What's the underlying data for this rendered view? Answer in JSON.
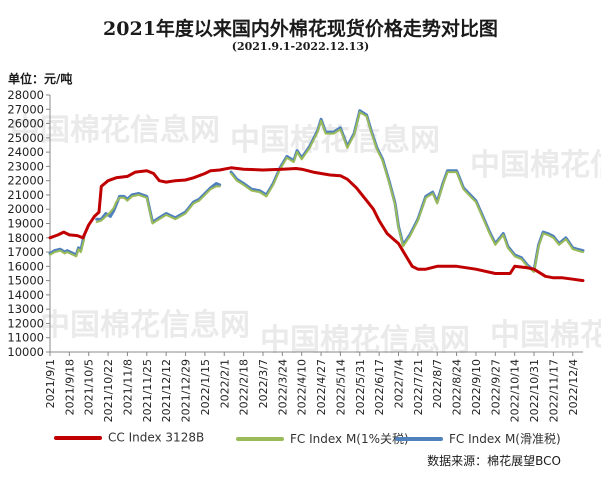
{
  "title": "2021年度以来国内外棉花现货价格走势对比图",
  "subtitle": "(2021.9.1-2022.12.13)",
  "unit_label": "单位：元/吨",
  "source_label": "数据来源：棉花展望BCO",
  "watermark": {
    "cn": "中国棉花信息网",
    "url": "www.cottonchina.org.cn"
  },
  "colors": {
    "cc_index": "#c00000",
    "fc_1pct": "#9bbb59",
    "fc_sliding": "#4f81bd"
  },
  "legend": [
    {
      "name": "CC Index 3128B",
      "color": "#c00000"
    },
    {
      "name": "FC Index M(1%关税)",
      "color": "#9bbb59"
    },
    {
      "name": "FC Index M(滑准税)",
      "color": "#4f81bd"
    }
  ],
  "chart_data": {
    "type": "line",
    "title": "2021年度以来国内外棉花现货价格走势对比图",
    "subtitle": "(2021.9.1-2022.12.13)",
    "ylabel": "单位：元/吨",
    "ylim": [
      10000,
      28000
    ],
    "yticks": [
      10000,
      11000,
      12000,
      13000,
      14000,
      15000,
      16000,
      17000,
      18000,
      19000,
      20000,
      21000,
      22000,
      23000,
      24000,
      25000,
      26000,
      27000,
      28000
    ],
    "xlim": [
      "2021-09-01",
      "2022-12-13"
    ],
    "xticks": [
      "2021/9/1",
      "2021/9/18",
      "2021/10/5",
      "2021/10/22",
      "2021/11/8",
      "2021/11/25",
      "2021/12/12",
      "2021/12/29",
      "2022/1/15",
      "2022/2/1",
      "2022/2/18",
      "2022/3/7",
      "2022/3/24",
      "2022/4/10",
      "2022/4/27",
      "2022/5/14",
      "2022/5/31",
      "2022/6/17",
      "2022/7/4",
      "2022/7/21",
      "2022/8/7",
      "2022/8/24",
      "2022/9/10",
      "2022/9/27",
      "2022/10/14",
      "2022/10/31",
      "2022/11/17",
      "2022/12/4"
    ],
    "grid": false,
    "legend_position": "bottom",
    "series": [
      {
        "name": "CC Index 3128B",
        "color": "#c00000",
        "points": [
          [
            "2021-09-01",
            18000
          ],
          [
            "2021-09-08",
            18200
          ],
          [
            "2021-09-13",
            18400
          ],
          [
            "2021-09-18",
            18200
          ],
          [
            "2021-09-25",
            18150
          ],
          [
            "2021-09-30",
            18000
          ],
          [
            "2021-10-05",
            18900
          ],
          [
            "2021-10-10",
            19500
          ],
          [
            "2021-10-14",
            19800
          ],
          [
            "2021-10-16",
            21600
          ],
          [
            "2021-10-22",
            22000
          ],
          [
            "2021-10-29",
            22200
          ],
          [
            "2021-11-08",
            22300
          ],
          [
            "2021-11-15",
            22600
          ],
          [
            "2021-11-25",
            22700
          ],
          [
            "2021-12-01",
            22500
          ],
          [
            "2021-12-06",
            22000
          ],
          [
            "2021-12-12",
            21900
          ],
          [
            "2021-12-20",
            22000
          ],
          [
            "2021-12-29",
            22050
          ],
          [
            "2022-01-05",
            22200
          ],
          [
            "2022-01-15",
            22500
          ],
          [
            "2022-01-20",
            22700
          ],
          [
            "2022-01-28",
            22750
          ],
          [
            "2022-02-07",
            22900
          ],
          [
            "2022-02-18",
            22800
          ],
          [
            "2022-03-07",
            22750
          ],
          [
            "2022-03-24",
            22800
          ],
          [
            "2022-04-05",
            22850
          ],
          [
            "2022-04-10",
            22800
          ],
          [
            "2022-04-20",
            22600
          ],
          [
            "2022-04-27",
            22500
          ],
          [
            "2022-05-05",
            22400
          ],
          [
            "2022-05-14",
            22350
          ],
          [
            "2022-05-20",
            22100
          ],
          [
            "2022-05-28",
            21500
          ],
          [
            "2022-06-05",
            20700
          ],
          [
            "2022-06-12",
            20000
          ],
          [
            "2022-06-17",
            19200
          ],
          [
            "2022-06-24",
            18300
          ],
          [
            "2022-07-01",
            17800
          ],
          [
            "2022-07-04",
            17600
          ],
          [
            "2022-07-10",
            16800
          ],
          [
            "2022-07-16",
            16000
          ],
          [
            "2022-07-21",
            15800
          ],
          [
            "2022-07-28",
            15800
          ],
          [
            "2022-08-07",
            16000
          ],
          [
            "2022-08-24",
            16000
          ],
          [
            "2022-09-10",
            15800
          ],
          [
            "2022-09-27",
            15500
          ],
          [
            "2022-10-10",
            15500
          ],
          [
            "2022-10-14",
            16000
          ],
          [
            "2022-10-25",
            15900
          ],
          [
            "2022-10-31",
            15800
          ],
          [
            "2022-11-10",
            15300
          ],
          [
            "2022-11-17",
            15200
          ],
          [
            "2022-11-25",
            15200
          ],
          [
            "2022-12-04",
            15100
          ],
          [
            "2022-12-13",
            15000
          ]
        ]
      },
      {
        "name": "FC Index M(1%关税)",
        "color": "#9bbb59",
        "points": [
          [
            "2021-09-01",
            16800
          ],
          [
            "2021-09-05",
            17000
          ],
          [
            "2021-09-10",
            17100
          ],
          [
            "2021-09-14",
            16900
          ],
          [
            "2021-09-16",
            17000
          ],
          [
            "2021-09-24",
            16700
          ],
          [
            "2021-09-26",
            17200
          ],
          [
            "2021-09-28",
            17000
          ],
          [
            "2021-10-01",
            17900
          ],
          [
            "2021-10-12",
            19100
          ],
          [
            "2021-10-16",
            19200
          ],
          [
            "2021-10-20",
            19500
          ],
          [
            "2021-10-24",
            19800
          ],
          [
            "2021-10-27",
            20100
          ],
          [
            "2021-10-29",
            20500
          ],
          [
            "2021-11-01",
            20800
          ],
          [
            "2021-11-05",
            20800
          ],
          [
            "2021-11-08",
            20600
          ],
          [
            "2021-11-12",
            20900
          ],
          [
            "2021-11-18",
            21000
          ],
          [
            "2021-11-25",
            20800
          ],
          [
            "2021-11-30",
            19000
          ],
          [
            "2021-12-06",
            19300
          ],
          [
            "2021-12-12",
            19600
          ],
          [
            "2021-12-20",
            19300
          ],
          [
            "2021-12-29",
            19700
          ],
          [
            "2022-01-05",
            20400
          ],
          [
            "2022-01-10",
            20600
          ],
          [
            "2022-01-15",
            21000
          ],
          [
            "2022-01-20",
            21400
          ],
          [
            "2022-01-25",
            21600
          ],
          [
            "2022-01-28",
            21600
          ],
          [
            "2022-02-07",
            22500
          ],
          [
            "2022-02-12",
            22000
          ],
          [
            "2022-02-18",
            21700
          ],
          [
            "2022-02-25",
            21300
          ],
          [
            "2022-03-04",
            21200
          ],
          [
            "2022-03-10",
            20900
          ],
          [
            "2022-03-16",
            21700
          ],
          [
            "2022-03-22",
            22800
          ],
          [
            "2022-03-28",
            23600
          ],
          [
            "2022-04-03",
            23300
          ],
          [
            "2022-04-06",
            24000
          ],
          [
            "2022-04-10",
            23500
          ],
          [
            "2022-04-17",
            24300
          ],
          [
            "2022-04-24",
            25400
          ],
          [
            "2022-04-27",
            26200
          ],
          [
            "2022-05-01",
            25300
          ],
          [
            "2022-05-08",
            25300
          ],
          [
            "2022-05-14",
            25600
          ],
          [
            "2022-05-20",
            24300
          ],
          [
            "2022-05-26",
            25200
          ],
          [
            "2022-05-31",
            26800
          ],
          [
            "2022-06-06",
            26500
          ],
          [
            "2022-06-10",
            25400
          ],
          [
            "2022-06-15",
            24200
          ],
          [
            "2022-06-20",
            23400
          ],
          [
            "2022-06-26",
            21800
          ],
          [
            "2022-07-01",
            20300
          ],
          [
            "2022-07-04",
            18700
          ],
          [
            "2022-07-08",
            17400
          ],
          [
            "2022-07-14",
            18100
          ],
          [
            "2022-07-21",
            19200
          ],
          [
            "2022-07-28",
            20800
          ],
          [
            "2022-08-03",
            21100
          ],
          [
            "2022-08-07",
            20400
          ],
          [
            "2022-08-12",
            21700
          ],
          [
            "2022-08-16",
            22600
          ],
          [
            "2022-08-24",
            22600
          ],
          [
            "2022-08-30",
            21400
          ],
          [
            "2022-09-05",
            20900
          ],
          [
            "2022-09-10",
            20500
          ],
          [
            "2022-09-16",
            19400
          ],
          [
            "2022-09-22",
            18300
          ],
          [
            "2022-09-27",
            17500
          ],
          [
            "2022-10-04",
            18200
          ],
          [
            "2022-10-08",
            17300
          ],
          [
            "2022-10-14",
            16700
          ],
          [
            "2022-10-20",
            16500
          ],
          [
            "2022-10-25",
            16000
          ],
          [
            "2022-10-31",
            15600
          ],
          [
            "2022-11-04",
            17400
          ],
          [
            "2022-11-08",
            18300
          ],
          [
            "2022-11-12",
            18200
          ],
          [
            "2022-11-17",
            18000
          ],
          [
            "2022-11-22",
            17500
          ],
          [
            "2022-11-28",
            17900
          ],
          [
            "2022-12-04",
            17200
          ],
          [
            "2022-12-08",
            17100
          ],
          [
            "2022-12-13",
            17000
          ]
        ]
      },
      {
        "name": "FC Index M(滑准税)",
        "color": "#4f81bd",
        "points": [
          [
            "2021-09-01",
            16900
          ],
          [
            "2021-09-05",
            17100
          ],
          [
            "2021-09-10",
            17200
          ],
          [
            "2021-09-14",
            17000
          ],
          [
            "2021-09-16",
            17100
          ],
          [
            "2021-09-24",
            16800
          ],
          [
            "2021-09-26",
            17300
          ],
          [
            "2021-09-28",
            17100
          ],
          [
            "2021-10-01",
            18200
          ],
          [
            "2021-10-12",
            19300
          ],
          [
            "2021-10-16",
            19300
          ],
          [
            "2021-10-20",
            19700
          ],
          [
            "2021-10-24",
            19500
          ],
          [
            "2021-10-27",
            19900
          ],
          [
            "2021-10-29",
            20300
          ],
          [
            "2021-11-01",
            20900
          ],
          [
            "2021-11-05",
            20900
          ],
          [
            "2021-11-08",
            20700
          ],
          [
            "2021-11-12",
            21000
          ],
          [
            "2021-11-18",
            21100
          ],
          [
            "2021-11-25",
            20900
          ],
          [
            "2021-11-30",
            19100
          ],
          [
            "2021-12-06",
            19400
          ],
          [
            "2021-12-12",
            19700
          ],
          [
            "2021-12-20",
            19400
          ],
          [
            "2021-12-29",
            19800
          ],
          [
            "2022-01-05",
            20500
          ],
          [
            "2022-01-10",
            20700
          ],
          [
            "2022-01-15",
            21100
          ],
          [
            "2022-01-20",
            21500
          ],
          [
            "2022-01-25",
            21800
          ],
          [
            "2022-01-28",
            21700
          ],
          [
            "2022-02-07",
            22600
          ],
          [
            "2022-02-12",
            22100
          ],
          [
            "2022-02-18",
            21800
          ],
          [
            "2022-02-25",
            21400
          ],
          [
            "2022-03-04",
            21300
          ],
          [
            "2022-03-10",
            21000
          ],
          [
            "2022-03-16",
            21800
          ],
          [
            "2022-03-22",
            22900
          ],
          [
            "2022-03-28",
            23700
          ],
          [
            "2022-04-03",
            23400
          ],
          [
            "2022-04-06",
            24100
          ],
          [
            "2022-04-10",
            23600
          ],
          [
            "2022-04-17",
            24400
          ],
          [
            "2022-04-24",
            25500
          ],
          [
            "2022-04-27",
            26300
          ],
          [
            "2022-05-01",
            25400
          ],
          [
            "2022-05-08",
            25400
          ],
          [
            "2022-05-14",
            25700
          ],
          [
            "2022-05-20",
            24400
          ],
          [
            "2022-05-26",
            25300
          ],
          [
            "2022-05-31",
            26900
          ],
          [
            "2022-06-06",
            26600
          ],
          [
            "2022-06-10",
            25500
          ],
          [
            "2022-06-15",
            24300
          ],
          [
            "2022-06-20",
            23500
          ],
          [
            "2022-06-26",
            21900
          ],
          [
            "2022-07-01",
            20400
          ],
          [
            "2022-07-04",
            18800
          ],
          [
            "2022-07-08",
            17500
          ],
          [
            "2022-07-14",
            18200
          ],
          [
            "2022-07-21",
            19300
          ],
          [
            "2022-07-28",
            20900
          ],
          [
            "2022-08-03",
            21200
          ],
          [
            "2022-08-07",
            20500
          ],
          [
            "2022-08-12",
            21800
          ],
          [
            "2022-08-16",
            22700
          ],
          [
            "2022-08-24",
            22700
          ],
          [
            "2022-08-30",
            21500
          ],
          [
            "2022-09-05",
            21000
          ],
          [
            "2022-09-10",
            20600
          ],
          [
            "2022-09-16",
            19500
          ],
          [
            "2022-09-22",
            18400
          ],
          [
            "2022-09-27",
            17600
          ],
          [
            "2022-10-04",
            18300
          ],
          [
            "2022-10-08",
            17400
          ],
          [
            "2022-10-14",
            16800
          ],
          [
            "2022-10-20",
            16600
          ],
          [
            "2022-10-25",
            16100
          ],
          [
            "2022-10-31",
            15700
          ],
          [
            "2022-11-04",
            17500
          ],
          [
            "2022-11-08",
            18400
          ],
          [
            "2022-11-12",
            18300
          ],
          [
            "2022-11-17",
            18100
          ],
          [
            "2022-11-22",
            17600
          ],
          [
            "2022-11-28",
            18000
          ],
          [
            "2022-12-04",
            17300
          ],
          [
            "2022-12-08",
            17200
          ],
          [
            "2022-12-13",
            17100
          ]
        ]
      }
    ]
  }
}
